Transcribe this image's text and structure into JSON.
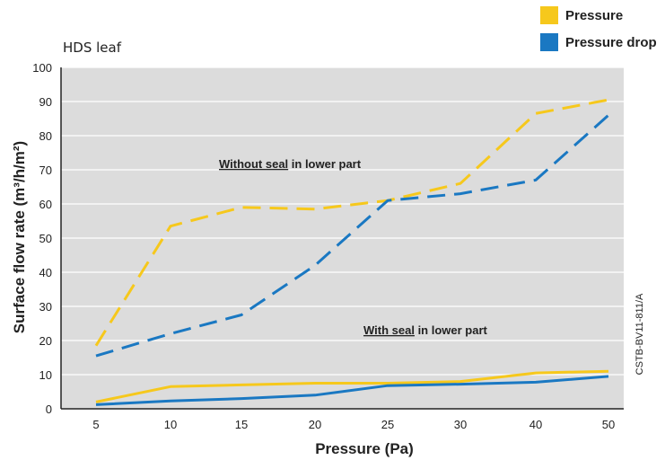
{
  "subtitle": "HDS leaf",
  "legend": [
    {
      "label": "Pressure",
      "color": "#f6c81c"
    },
    {
      "label": "Pressure drop",
      "color": "#1a78c2"
    }
  ],
  "annotations": {
    "without_seal_underlined": "Without seal",
    "without_seal_rest": " in lower part",
    "with_seal_underlined": "With seal",
    "with_seal_rest": " in lower part",
    "reference": "CSTB-BV11-811/A"
  },
  "colors": {
    "plot_background": "#dcdcdc",
    "gridline": "#ffffff",
    "axis": "#222222"
  },
  "chart_data": {
    "type": "line",
    "xlabel": "Pressure (Pa)",
    "ylabel": "Surface flow rate (m³/h/m²)",
    "categories": [
      "5",
      "10",
      "15",
      "20",
      "25",
      "30",
      "40",
      "50"
    ],
    "ylim": [
      0,
      100
    ],
    "yticks": [
      0,
      10,
      20,
      30,
      40,
      50,
      60,
      70,
      80,
      90,
      100
    ],
    "grid": true,
    "legend_position": "top-right",
    "series": [
      {
        "name": "Pressure",
        "condition": "Without seal",
        "style": "dashed",
        "color": "#f6c81c",
        "values": [
          18.5,
          53.5,
          59,
          58.5,
          61,
          66,
          86.5,
          90.5
        ]
      },
      {
        "name": "Pressure drop",
        "condition": "Without seal",
        "style": "dashed",
        "color": "#1a78c2",
        "values": [
          15.5,
          22,
          27.5,
          42,
          61,
          63,
          67,
          86
        ]
      },
      {
        "name": "Pressure",
        "condition": "With seal",
        "style": "solid",
        "color": "#f6c81c",
        "values": [
          2,
          6.5,
          7,
          7.5,
          7.5,
          8,
          10.5,
          11
        ]
      },
      {
        "name": "Pressure drop",
        "condition": "With seal",
        "style": "solid",
        "color": "#1a78c2",
        "values": [
          1.2,
          2.3,
          3,
          4,
          6.8,
          7.2,
          7.8,
          9.5
        ]
      }
    ]
  }
}
